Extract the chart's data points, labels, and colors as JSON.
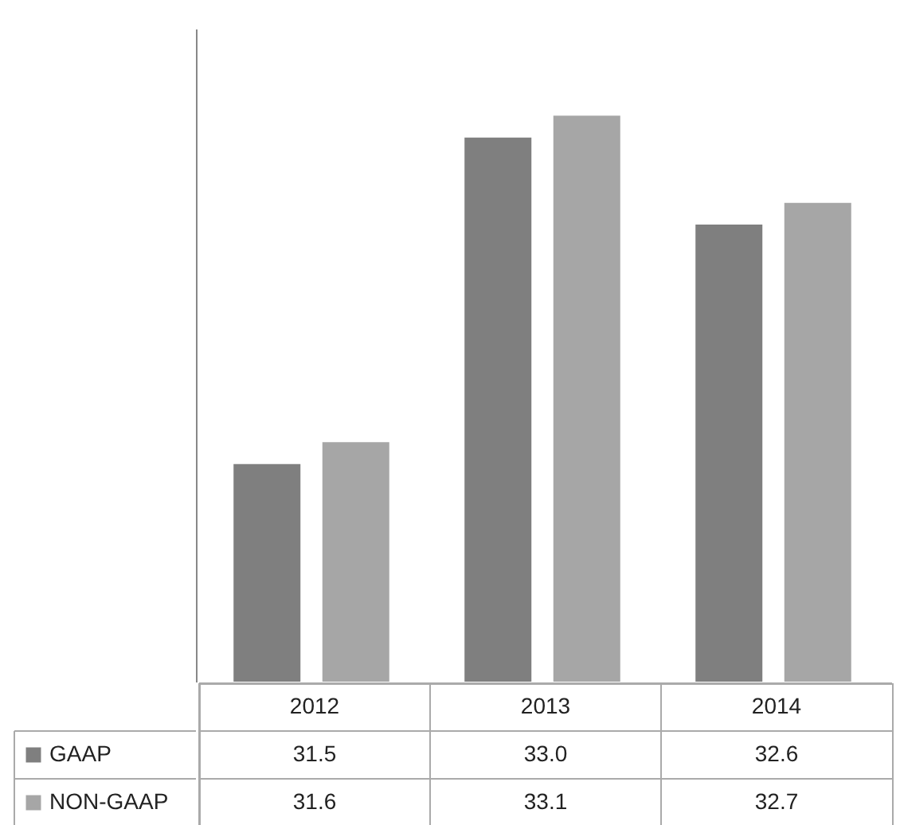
{
  "chart_data": {
    "type": "bar",
    "categories": [
      "2012",
      "2013",
      "2014"
    ],
    "series": [
      {
        "name": "GAAP",
        "color": "#7f7f7f",
        "values": [
          31.5,
          33.0,
          32.6
        ],
        "value_labels": [
          "31.5",
          "33.0",
          "32.6"
        ]
      },
      {
        "name": "NON-GAAP",
        "color": "#a6a6a6",
        "values": [
          31.6,
          33.1,
          32.7
        ],
        "value_labels": [
          "31.6",
          "33.1",
          "32.7"
        ]
      }
    ],
    "ylim": [
      30.5,
      33.5
    ],
    "legend": "bottom left"
  }
}
